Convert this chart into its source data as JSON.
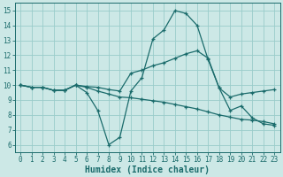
{
  "xlabel": "Humidex (Indice chaleur)",
  "bg_color": "#cce8e6",
  "grid_color": "#99ccca",
  "line_color": "#1a6b6b",
  "xlim": [
    -0.5,
    23.5
  ],
  "ylim": [
    5.5,
    15.5
  ],
  "xticks": [
    0,
    1,
    2,
    3,
    4,
    5,
    6,
    7,
    8,
    9,
    10,
    11,
    12,
    13,
    14,
    15,
    16,
    17,
    18,
    19,
    20,
    21,
    22,
    23
  ],
  "yticks": [
    6,
    7,
    8,
    9,
    10,
    11,
    12,
    13,
    14,
    15
  ],
  "line1_x": [
    0,
    1,
    2,
    3,
    4,
    5,
    6,
    7,
    8,
    9,
    10,
    11,
    12,
    13,
    14,
    15,
    16,
    17,
    18,
    19,
    20,
    21,
    22,
    23
  ],
  "line1_y": [
    10.0,
    9.85,
    9.85,
    9.65,
    9.65,
    10.0,
    9.5,
    8.3,
    6.0,
    6.5,
    9.6,
    10.5,
    13.1,
    13.7,
    15.0,
    14.8,
    14.0,
    11.7,
    9.8,
    8.3,
    8.6,
    7.8,
    7.4,
    7.3
  ],
  "line2_x": [
    0,
    1,
    2,
    3,
    4,
    5,
    6,
    7,
    8,
    9,
    10,
    11,
    12,
    13,
    14,
    15,
    16,
    17,
    18,
    19,
    20,
    21,
    22,
    23
  ],
  "line2_y": [
    10.0,
    9.85,
    9.85,
    9.65,
    9.65,
    10.0,
    9.9,
    9.85,
    9.7,
    9.6,
    10.8,
    11.0,
    11.3,
    11.5,
    11.8,
    12.1,
    12.3,
    11.8,
    9.8,
    9.2,
    9.4,
    9.5,
    9.6,
    9.7
  ],
  "line3_x": [
    0,
    1,
    2,
    3,
    4,
    5,
    6,
    7,
    8,
    9,
    10,
    11,
    12,
    13,
    14,
    15,
    16,
    17,
    18,
    19,
    20,
    21,
    22,
    23
  ],
  "line3_y": [
    10.0,
    9.85,
    9.85,
    9.65,
    9.65,
    10.0,
    9.85,
    9.6,
    9.4,
    9.2,
    9.15,
    9.05,
    8.95,
    8.85,
    8.7,
    8.55,
    8.4,
    8.2,
    8.0,
    7.85,
    7.7,
    7.65,
    7.55,
    7.4
  ],
  "tick_fontsize": 5.5,
  "xlabel_fontsize": 7
}
